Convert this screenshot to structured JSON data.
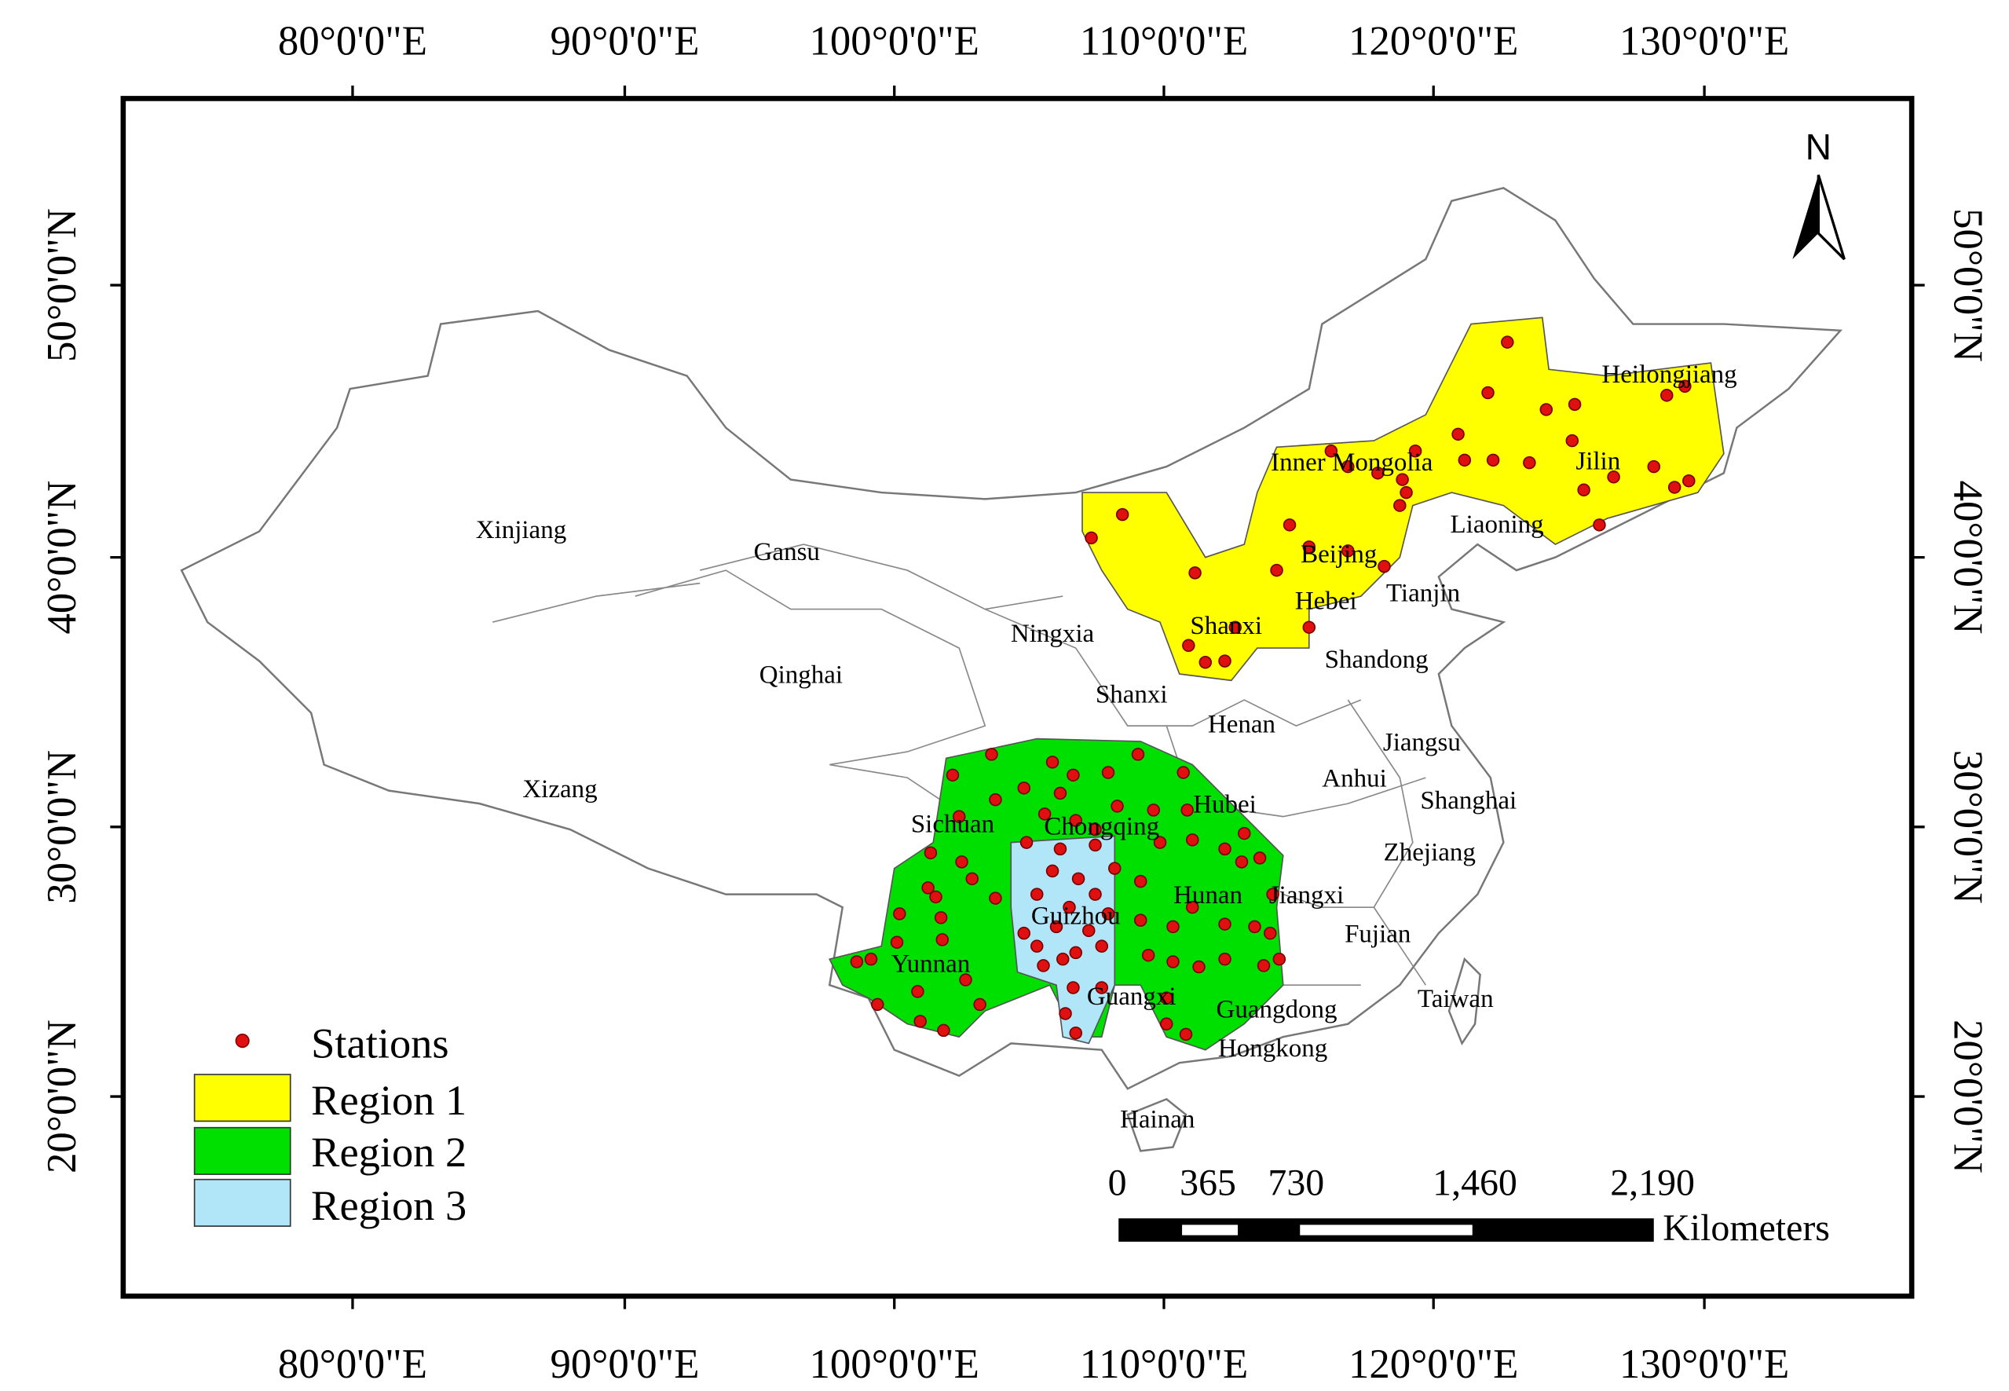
{
  "axes": {
    "top": [
      "80°0'0\"E",
      "90°0'0\"E",
      "100°0'0\"E",
      "110°0'0\"E",
      "120°0'0\"E",
      "130°0'0\"E"
    ],
    "bottom": [
      "80°0'0\"E",
      "90°0'0\"E",
      "100°0'0\"E",
      "110°0'0\"E",
      "120°0'0\"E",
      "130°0'0\"E"
    ],
    "left": [
      "50°0'0\"N",
      "40°0'0\"N",
      "30°0'0\"N",
      "20°0'0\"N"
    ],
    "right": [
      "50°0'0\"N",
      "40°0'0\"N",
      "30°0'0\"N",
      "20°0'0\"N"
    ]
  },
  "provinces": [
    "Xinjiang",
    "Gansu",
    "Qinghai",
    "Xizang",
    "Ningxia",
    "Shanxi",
    "Shanxi",
    "Inner Mongolia",
    "Heilongjiang",
    "Jilin",
    "Liaoning",
    "Beijing",
    "Tianjin",
    "Hebei",
    "Shandong",
    "Henan",
    "Jiangsu",
    "Anhui",
    "Shanghai",
    "Hubei",
    "Sichuan",
    "Chongqing",
    "Zhejiang",
    "Jiangxi",
    "Hunan",
    "Guizhou",
    "Fujian",
    "Yunnan",
    "Guangxi",
    "Taiwan",
    "Guangdong",
    "Hongkong",
    "Hainan"
  ],
  "legend": {
    "items": [
      "Stations",
      "Region 1",
      "Region 2",
      "Region 3"
    ]
  },
  "scale_bar": {
    "labels": [
      "0",
      "365",
      "730",
      "1,460",
      "2,190"
    ],
    "unit": "Kilometers"
  },
  "north": "N"
}
